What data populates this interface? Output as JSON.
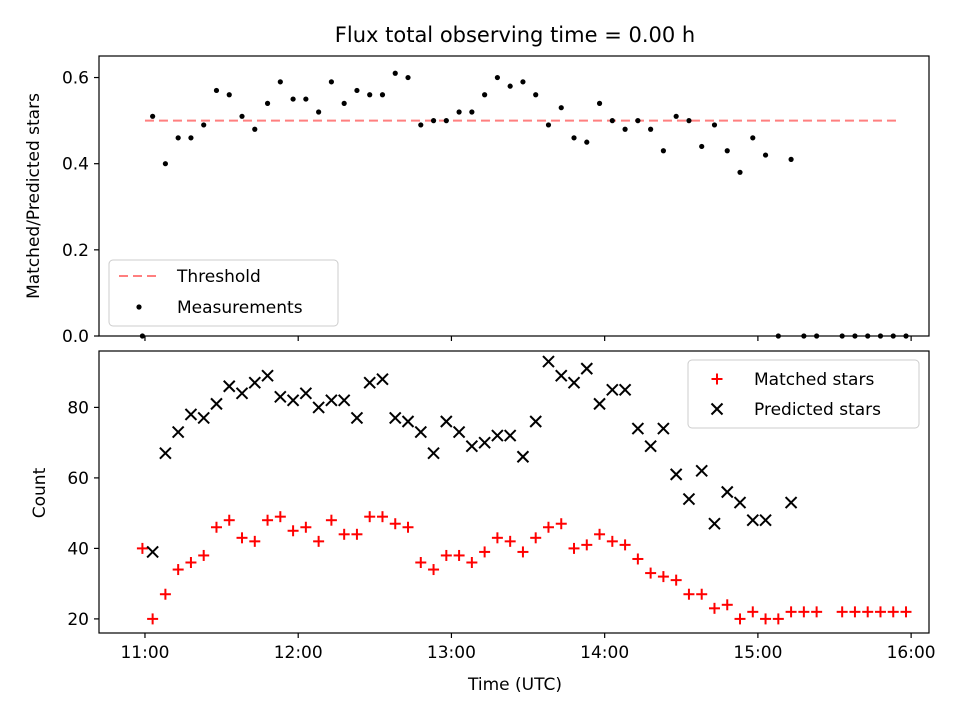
{
  "chart_data": [
    {
      "type": "scatter",
      "title": "Flux total observing time = 0.00 h",
      "xlabel": "",
      "ylabel": "Matched/Predicted stars",
      "xlim": [
        "10:42",
        "16:07"
      ],
      "ylim": [
        0.0,
        0.65
      ],
      "x_ticks": [
        "11:00",
        "12:00",
        "13:00",
        "14:00",
        "15:00",
        "16:00"
      ],
      "y_ticks": [
        "0.0",
        "0.2",
        "0.4",
        "0.6"
      ],
      "legend_position": "lower-left",
      "threshold": {
        "name": "Threshold",
        "value": 0.5,
        "x_range": [
          "11:00",
          "15:56"
        ],
        "color": "#ff7f7f"
      },
      "series": [
        {
          "name": "Measurements",
          "color": "#000000",
          "x": [
            "10:59",
            "11:03",
            "11:08",
            "11:13",
            "11:18",
            "11:23",
            "11:28",
            "11:33",
            "11:38",
            "11:43",
            "11:48",
            "11:53",
            "11:58",
            "12:03",
            "12:08",
            "12:13",
            "12:18",
            "12:23",
            "12:28",
            "12:33",
            "12:38",
            "12:43",
            "12:48",
            "12:53",
            "12:58",
            "13:03",
            "13:08",
            "13:13",
            "13:18",
            "13:23",
            "13:28",
            "13:33",
            "13:38",
            "13:43",
            "13:48",
            "13:53",
            "13:58",
            "14:03",
            "14:08",
            "14:13",
            "14:18",
            "14:23",
            "14:28",
            "14:33",
            "14:38",
            "14:43",
            "14:48",
            "14:53",
            "14:58",
            "15:03",
            "15:08",
            "15:13",
            "15:18",
            "15:23",
            "15:33",
            "15:38",
            "15:43",
            "15:48",
            "15:53",
            "15:58"
          ],
          "y": [
            0.0,
            0.51,
            0.4,
            0.46,
            0.46,
            0.49,
            0.57,
            0.56,
            0.51,
            0.48,
            0.54,
            0.59,
            0.55,
            0.55,
            0.52,
            0.59,
            0.54,
            0.57,
            0.56,
            0.56,
            0.61,
            0.6,
            0.49,
            0.5,
            0.5,
            0.52,
            0.52,
            0.56,
            0.6,
            0.58,
            0.59,
            0.56,
            0.49,
            0.53,
            0.46,
            0.45,
            0.54,
            0.5,
            0.48,
            0.5,
            0.48,
            0.43,
            0.51,
            0.5,
            0.44,
            0.49,
            0.43,
            0.38,
            0.46,
            0.42,
            0.0,
            0.41,
            0.0,
            0.0,
            0.0,
            0.0,
            0.0,
            0.0,
            0.0,
            0.0
          ]
        }
      ]
    },
    {
      "type": "scatter",
      "title": "",
      "xlabel": "Time (UTC)",
      "ylabel": "Count",
      "xlim": [
        "10:42",
        "16:07"
      ],
      "ylim": [
        16,
        96
      ],
      "x_ticks": [
        "11:00",
        "12:00",
        "13:00",
        "14:00",
        "15:00",
        "16:00"
      ],
      "y_ticks": [
        "20",
        "40",
        "60",
        "80"
      ],
      "legend_position": "upper-right",
      "series": [
        {
          "name": "Matched stars",
          "marker": "plus",
          "color": "#ff0000",
          "x": [
            "10:59",
            "11:03",
            "11:08",
            "11:13",
            "11:18",
            "11:23",
            "11:28",
            "11:33",
            "11:38",
            "11:43",
            "11:48",
            "11:53",
            "11:58",
            "12:03",
            "12:08",
            "12:13",
            "12:18",
            "12:23",
            "12:28",
            "12:33",
            "12:38",
            "12:43",
            "12:48",
            "12:53",
            "12:58",
            "13:03",
            "13:08",
            "13:13",
            "13:18",
            "13:23",
            "13:28",
            "13:33",
            "13:38",
            "13:43",
            "13:48",
            "13:53",
            "13:58",
            "14:03",
            "14:08",
            "14:13",
            "14:18",
            "14:23",
            "14:28",
            "14:33",
            "14:38",
            "14:43",
            "14:48",
            "14:53",
            "14:58",
            "15:03",
            "15:08",
            "15:13",
            "15:18",
            "15:23",
            "15:33",
            "15:38",
            "15:43",
            "15:48",
            "15:53",
            "15:58"
          ],
          "y": [
            40,
            20,
            27,
            34,
            36,
            38,
            46,
            48,
            43,
            42,
            48,
            49,
            45,
            46,
            42,
            48,
            44,
            44,
            49,
            49,
            47,
            46,
            36,
            34,
            38,
            38,
            36,
            39,
            43,
            42,
            39,
            43,
            46,
            47,
            40,
            41,
            44,
            42,
            41,
            37,
            33,
            32,
            31,
            27,
            27,
            23,
            24,
            20,
            22,
            20,
            20,
            22,
            22,
            22,
            22,
            22,
            22,
            22,
            22,
            22
          ]
        },
        {
          "name": "Predicted stars",
          "marker": "x",
          "color": "#000000",
          "x": [
            "11:03",
            "11:08",
            "11:13",
            "11:18",
            "11:23",
            "11:28",
            "11:33",
            "11:38",
            "11:43",
            "11:48",
            "11:53",
            "11:58",
            "12:03",
            "12:08",
            "12:13",
            "12:18",
            "12:23",
            "12:28",
            "12:33",
            "12:38",
            "12:43",
            "12:48",
            "12:53",
            "12:58",
            "13:03",
            "13:08",
            "13:13",
            "13:18",
            "13:23",
            "13:28",
            "13:33",
            "13:38",
            "13:43",
            "13:48",
            "13:53",
            "13:58",
            "14:03",
            "14:08",
            "14:13",
            "14:18",
            "14:23",
            "14:28",
            "14:33",
            "14:38",
            "14:43",
            "14:48",
            "14:53",
            "14:58",
            "15:03",
            "15:13"
          ],
          "y": [
            39,
            67,
            73,
            78,
            77,
            81,
            86,
            84,
            87,
            89,
            83,
            82,
            84,
            80,
            82,
            82,
            77,
            87,
            88,
            77,
            76,
            73,
            67,
            76,
            73,
            69,
            70,
            72,
            72,
            66,
            76,
            93,
            89,
            87,
            91,
            81,
            85,
            85,
            74,
            69,
            74,
            61,
            54,
            62,
            47,
            56,
            53,
            48,
            48,
            53
          ]
        }
      ]
    }
  ]
}
